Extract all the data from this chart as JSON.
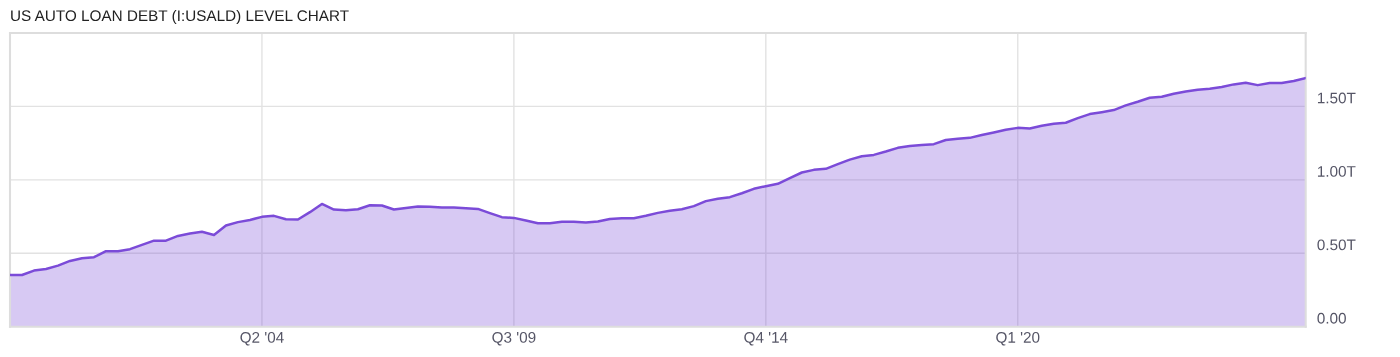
{
  "chart_data": {
    "type": "area",
    "title": "US AUTO LOAN DEBT (I:USALD) LEVEL CHART",
    "categories": [
      null,
      null,
      null,
      null,
      null,
      null,
      null,
      null,
      null,
      null,
      null,
      null,
      null,
      null,
      null,
      null,
      null,
      null,
      null,
      null,
      null,
      "Q2 '04",
      null,
      null,
      null,
      null,
      null,
      null,
      null,
      null,
      null,
      null,
      null,
      null,
      null,
      null,
      null,
      null,
      null,
      null,
      null,
      null,
      "Q3 '09",
      null,
      null,
      null,
      null,
      null,
      null,
      null,
      null,
      null,
      null,
      null,
      null,
      null,
      null,
      null,
      null,
      null,
      null,
      null,
      null,
      "Q4 '14",
      null,
      null,
      null,
      null,
      null,
      null,
      null,
      null,
      null,
      null,
      null,
      null,
      null,
      null,
      null,
      null,
      null,
      null,
      null,
      null,
      "Q1 '20",
      null,
      null,
      null,
      null,
      null,
      null,
      null,
      null,
      null,
      null,
      null,
      null,
      null,
      null,
      null,
      null,
      null,
      null,
      null,
      null,
      null,
      null,
      null,
      null
    ],
    "series": [
      {
        "color": "#7b4bd8",
        "values": [
          0.352,
          0.352,
          0.382,
          0.393,
          0.416,
          0.448,
          0.466,
          0.473,
          0.514,
          0.514,
          0.528,
          0.557,
          0.586,
          0.586,
          0.618,
          0.634,
          0.646,
          0.625,
          0.689,
          0.712,
          0.727,
          0.748,
          0.755,
          0.732,
          0.73,
          0.78,
          0.836,
          0.798,
          0.793,
          0.8,
          0.827,
          0.825,
          0.798,
          0.809,
          0.818,
          0.816,
          0.811,
          0.811,
          0.807,
          0.802,
          0.773,
          0.746,
          0.741,
          0.723,
          0.705,
          0.705,
          0.714,
          0.714,
          0.709,
          0.716,
          0.734,
          0.739,
          0.739,
          0.755,
          0.775,
          0.789,
          0.8,
          0.821,
          0.855,
          0.871,
          0.882,
          0.909,
          0.939,
          0.957,
          0.973,
          1.012,
          1.05,
          1.068,
          1.075,
          1.107,
          1.138,
          1.161,
          1.17,
          1.193,
          1.218,
          1.23,
          1.237,
          1.243,
          1.271,
          1.28,
          1.286,
          1.305,
          1.323,
          1.341,
          1.354,
          1.35,
          1.368,
          1.382,
          1.389,
          1.42,
          1.448,
          1.461,
          1.475,
          1.507,
          1.532,
          1.559,
          1.566,
          1.586,
          1.602,
          1.614,
          1.62,
          1.632,
          1.65,
          1.661,
          1.645,
          1.659,
          1.659,
          1.673,
          1.693
        ]
      }
    ],
    "ylim": [
      0,
      2.0
    ],
    "yticks": [
      {
        "value": 0,
        "label": "0.00"
      },
      {
        "value": 0.5,
        "label": "0.50T"
      },
      {
        "value": 1.0,
        "label": "1.00T"
      },
      {
        "value": 1.5,
        "label": "1.50T"
      }
    ],
    "grid": true
  }
}
